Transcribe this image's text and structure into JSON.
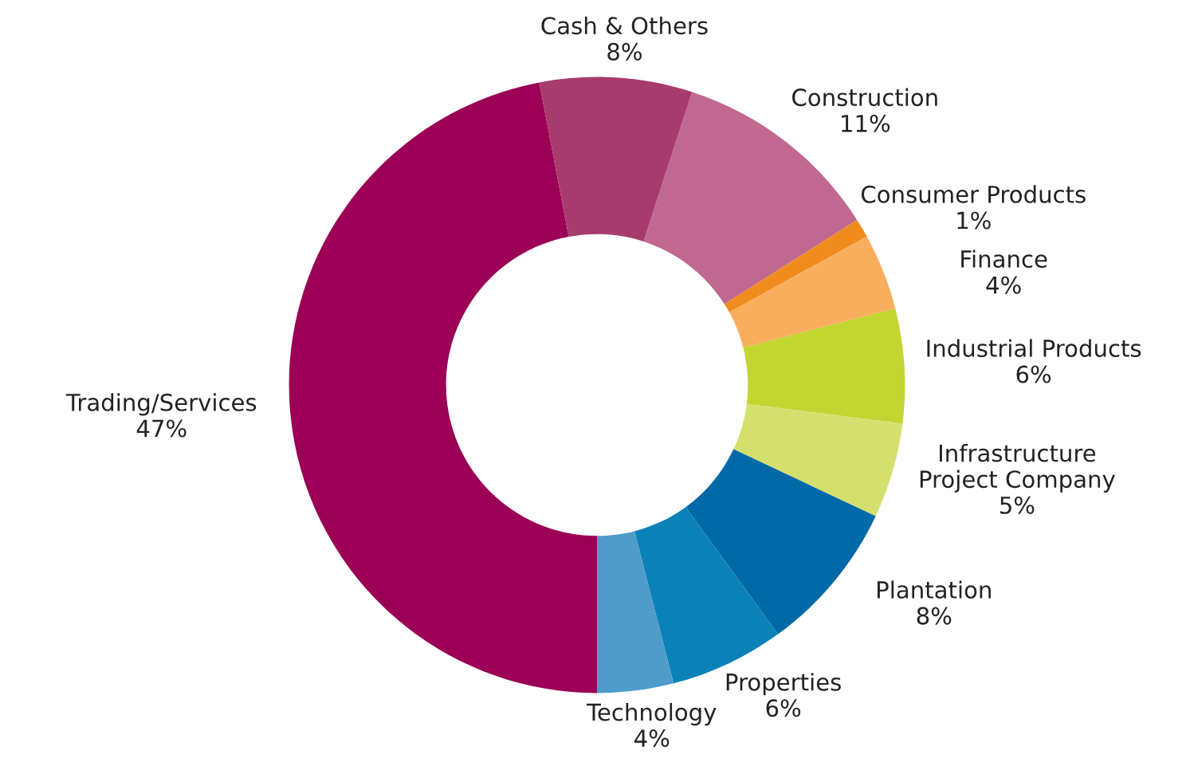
{
  "chart_data": {
    "type": "donut",
    "categories": [
      "Trading/Services",
      "Cash & Others",
      "Construction",
      "Consumer Products",
      "Finance",
      "Industrial Products",
      "Infrastructure Project Company",
      "Plantation",
      "Properties",
      "Technology"
    ],
    "values": [
      47,
      8,
      11,
      1,
      4,
      6,
      5,
      8,
      6,
      4
    ],
    "colors": [
      "#9b0056",
      "#a83b6e",
      "#c0688f",
      "#f08c1e",
      "#f9ae5d",
      "#c3d530",
      "#d4e06e",
      "#0069a8",
      "#0a82b8",
      "#4f9ccb"
    ],
    "value_labels": [
      "47%",
      "8%",
      "11%",
      "1%",
      "4%",
      "6%",
      "5%",
      "8%",
      "6%",
      "4%"
    ],
    "legend": false
  }
}
